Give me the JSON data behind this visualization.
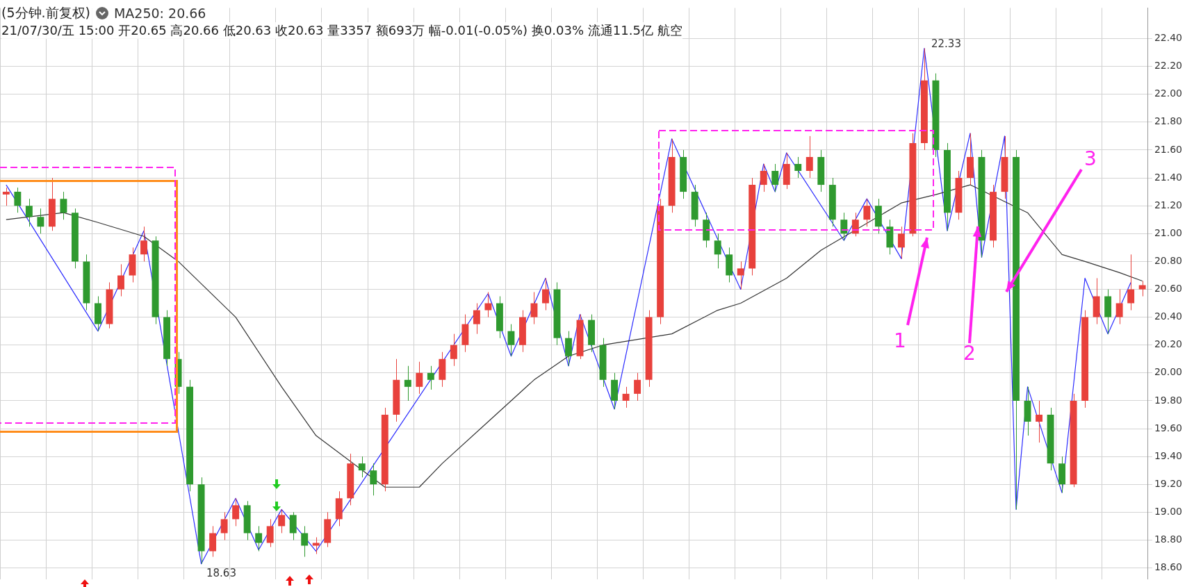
{
  "chart_data": {
    "type": "candlestick",
    "title": "(5分钟.前复权)",
    "subtitle": "21/07/30/五 15:00 开20.65 高20.66 低20.63 收20.63 量3357 额693万 幅-0.01(-0.05%) 换0.03% 流通11.5亿 航空",
    "categories": [
      null,
      null,
      null,
      null,
      null,
      null,
      null,
      null,
      null,
      null,
      null,
      null,
      null,
      null,
      null,
      null,
      null,
      null,
      null,
      null,
      null,
      null,
      null,
      null,
      null,
      null,
      null,
      null,
      null,
      null,
      null,
      null,
      null,
      null,
      null,
      null,
      null,
      null,
      null,
      null,
      null,
      null,
      null,
      null,
      null,
      null,
      null,
      null,
      null,
      null,
      null,
      null,
      null,
      null,
      null,
      null,
      null,
      null,
      null,
      null,
      null,
      null,
      null,
      null,
      null,
      null,
      null,
      null,
      null,
      null,
      null,
      null,
      null,
      null,
      null,
      null,
      null,
      null,
      null,
      null,
      null,
      null,
      null,
      null,
      null,
      null,
      null,
      null,
      null,
      null,
      null,
      null,
      null,
      null,
      null,
      null,
      null,
      null,
      null,
      null
    ],
    "ohlc": [
      [
        21.28,
        21.33,
        21.2,
        21.3
      ],
      [
        21.3,
        21.33,
        21.15,
        21.2
      ],
      [
        21.2,
        21.25,
        21.05,
        21.12
      ],
      [
        21.12,
        21.18,
        21.0,
        21.05
      ],
      [
        21.05,
        21.4,
        21.02,
        21.25
      ],
      [
        21.25,
        21.3,
        21.1,
        21.15
      ],
      [
        21.15,
        21.18,
        20.75,
        20.8
      ],
      [
        20.8,
        20.85,
        20.45,
        20.5
      ],
      [
        20.5,
        20.55,
        20.3,
        20.35
      ],
      [
        20.35,
        20.65,
        20.32,
        20.6
      ],
      [
        20.6,
        20.78,
        20.55,
        20.7
      ],
      [
        20.7,
        20.9,
        20.65,
        20.85
      ],
      [
        20.85,
        21.05,
        20.8,
        20.95
      ],
      [
        20.95,
        20.98,
        20.35,
        20.4
      ],
      [
        20.4,
        20.45,
        20.05,
        20.1
      ],
      [
        20.1,
        20.15,
        19.85,
        19.9
      ],
      [
        19.9,
        19.95,
        19.15,
        19.2
      ],
      [
        19.2,
        19.25,
        18.63,
        18.72
      ],
      [
        18.72,
        18.9,
        18.68,
        18.85
      ],
      [
        18.85,
        19.0,
        18.8,
        18.95
      ],
      [
        18.95,
        19.1,
        18.9,
        19.05
      ],
      [
        19.05,
        19.08,
        18.8,
        18.85
      ],
      [
        18.85,
        18.9,
        18.72,
        18.78
      ],
      [
        18.78,
        18.95,
        18.75,
        18.9
      ],
      [
        18.9,
        19.02,
        18.85,
        18.98
      ],
      [
        18.98,
        19.0,
        18.8,
        18.85
      ],
      [
        18.85,
        18.9,
        18.68,
        18.76
      ],
      [
        18.76,
        18.82,
        18.7,
        18.78
      ],
      [
        18.78,
        19.0,
        18.75,
        18.95
      ],
      [
        18.95,
        19.15,
        18.9,
        19.1
      ],
      [
        19.1,
        19.42,
        19.05,
        19.35
      ],
      [
        19.35,
        19.4,
        19.25,
        19.3
      ],
      [
        19.3,
        19.35,
        19.12,
        19.2
      ],
      [
        19.2,
        19.75,
        19.15,
        19.7
      ],
      [
        19.7,
        20.1,
        19.65,
        19.95
      ],
      [
        19.95,
        20.05,
        19.8,
        19.9
      ],
      [
        19.9,
        20.08,
        19.85,
        20.0
      ],
      [
        20.0,
        20.05,
        19.88,
        19.95
      ],
      [
        19.95,
        20.15,
        19.9,
        20.1
      ],
      [
        20.1,
        20.28,
        20.05,
        20.2
      ],
      [
        20.2,
        20.42,
        20.15,
        20.35
      ],
      [
        20.35,
        20.5,
        20.28,
        20.45
      ],
      [
        20.45,
        20.58,
        20.4,
        20.5
      ],
      [
        20.5,
        20.55,
        20.25,
        20.3
      ],
      [
        20.3,
        20.35,
        20.12,
        20.2
      ],
      [
        20.2,
        20.45,
        20.15,
        20.4
      ],
      [
        20.4,
        20.58,
        20.35,
        20.5
      ],
      [
        20.5,
        20.68,
        20.45,
        20.6
      ],
      [
        20.6,
        20.65,
        20.2,
        20.25
      ],
      [
        20.25,
        20.3,
        20.05,
        20.12
      ],
      [
        20.12,
        20.42,
        20.1,
        20.38
      ],
      [
        20.38,
        20.42,
        20.15,
        20.2
      ],
      [
        20.2,
        20.25,
        19.9,
        19.95
      ],
      [
        19.95,
        20.0,
        19.74,
        19.8
      ],
      [
        19.8,
        19.9,
        19.75,
        19.85
      ],
      [
        19.85,
        20.0,
        19.8,
        19.95
      ],
      [
        19.95,
        20.45,
        19.9,
        20.4
      ],
      [
        20.4,
        21.25,
        20.35,
        21.2
      ],
      [
        21.2,
        21.68,
        21.15,
        21.55
      ],
      [
        21.55,
        21.6,
        21.25,
        21.3
      ],
      [
        21.3,
        21.35,
        21.05,
        21.1
      ],
      [
        21.1,
        21.15,
        20.9,
        20.95
      ],
      [
        20.95,
        21.0,
        20.75,
        20.85
      ],
      [
        20.85,
        20.9,
        20.65,
        20.7
      ],
      [
        20.7,
        20.8,
        20.6,
        20.75
      ],
      [
        20.75,
        21.4,
        20.7,
        21.35
      ],
      [
        21.35,
        21.5,
        21.3,
        21.45
      ],
      [
        21.45,
        21.5,
        21.3,
        21.35
      ],
      [
        21.35,
        21.58,
        21.32,
        21.5
      ],
      [
        21.5,
        21.55,
        21.4,
        21.45
      ],
      [
        21.45,
        21.7,
        21.4,
        21.55
      ],
      [
        21.55,
        21.6,
        21.3,
        21.35
      ],
      [
        21.35,
        21.4,
        21.05,
        21.1
      ],
      [
        21.1,
        21.15,
        20.95,
        21.0
      ],
      [
        21.0,
        21.15,
        20.98,
        21.1
      ],
      [
        21.1,
        21.25,
        21.05,
        21.2
      ],
      [
        21.2,
        21.25,
        21.0,
        21.05
      ],
      [
        21.05,
        21.1,
        20.85,
        20.9
      ],
      [
        20.9,
        21.05,
        20.82,
        21.0
      ],
      [
        21.0,
        21.72,
        20.98,
        21.65
      ],
      [
        21.65,
        22.33,
        21.6,
        22.1
      ],
      [
        22.1,
        22.15,
        21.55,
        21.6
      ],
      [
        21.6,
        21.65,
        21.02,
        21.15
      ],
      [
        21.15,
        21.45,
        21.1,
        21.4
      ],
      [
        21.4,
        21.72,
        21.35,
        21.55
      ],
      [
        21.55,
        21.6,
        20.83,
        20.95
      ],
      [
        20.95,
        21.35,
        20.9,
        21.3
      ],
      [
        21.3,
        21.7,
        21.25,
        21.55
      ],
      [
        21.55,
        21.6,
        19.02,
        19.8
      ],
      [
        19.8,
        19.9,
        19.55,
        19.65
      ],
      [
        19.65,
        19.8,
        19.5,
        19.7
      ],
      [
        19.7,
        19.75,
        19.3,
        19.35
      ],
      [
        19.35,
        19.4,
        19.14,
        19.2
      ],
      [
        19.2,
        19.85,
        19.18,
        19.8
      ],
      [
        19.8,
        20.45,
        19.75,
        20.4
      ],
      [
        20.4,
        20.68,
        20.35,
        20.55
      ],
      [
        20.55,
        20.6,
        20.28,
        20.4
      ],
      [
        20.4,
        20.6,
        20.35,
        20.5
      ],
      [
        20.5,
        20.85,
        20.45,
        20.6
      ],
      [
        20.6,
        20.66,
        20.55,
        20.63
      ]
    ],
    "colors": [
      "#e8413c",
      "#2f9a2f",
      "#2f9a2f",
      "#2f9a2f",
      "#e8413c",
      "#2f9a2f",
      "#2f9a2f",
      "#2f9a2f",
      "#2f9a2f",
      "#e8413c",
      "#e8413c",
      "#e8413c",
      "#e8413c",
      "#2f9a2f",
      "#2f9a2f",
      "#2f9a2f",
      "#2f9a2f",
      "#2f9a2f",
      "#e8413c",
      "#e8413c",
      "#e8413c",
      "#2f9a2f",
      "#2f9a2f",
      "#e8413c",
      "#e8413c",
      "#2f9a2f",
      "#2f9a2f",
      "#e8413c",
      "#e8413c",
      "#e8413c",
      "#e8413c",
      "#2f9a2f",
      "#2f9a2f",
      "#e8413c",
      "#e8413c",
      "#2f9a2f",
      "#e8413c",
      "#2f9a2f",
      "#e8413c",
      "#e8413c",
      "#e8413c",
      "#e8413c",
      "#e8413c",
      "#2f9a2f",
      "#2f9a2f",
      "#e8413c",
      "#e8413c",
      "#e8413c",
      "#2f9a2f",
      "#2f9a2f",
      "#e8413c",
      "#2f9a2f",
      "#2f9a2f",
      "#2f9a2f",
      "#e8413c",
      "#e8413c",
      "#e8413c",
      "#e8413c",
      "#e8413c",
      "#2f9a2f",
      "#2f9a2f",
      "#2f9a2f",
      "#2f9a2f",
      "#2f9a2f",
      "#e8413c",
      "#e8413c",
      "#e8413c",
      "#2f9a2f",
      "#e8413c",
      "#2f9a2f",
      "#e8413c",
      "#2f9a2f",
      "#2f9a2f",
      "#2f9a2f",
      "#e8413c",
      "#e8413c",
      "#2f9a2f",
      "#2f9a2f",
      "#e8413c",
      "#e8413c",
      "#e8413c",
      "#2f9a2f",
      "#2f9a2f",
      "#e8413c",
      "#e8413c",
      "#2f9a2f",
      "#e8413c",
      "#e8413c",
      "#2f9a2f",
      "#2f9a2f",
      "#e8413c",
      "#2f9a2f",
      "#2f9a2f",
      "#e8413c",
      "#e8413c",
      "#e8413c",
      "#2f9a2f",
      "#e8413c",
      "#e8413c",
      "#e8413c"
    ],
    "series": [
      {
        "name": "MA250: 20.66",
        "type": "line",
        "color": "#333333",
        "values": [
          21.1,
          null,
          null,
          null,
          null,
          21.15,
          null,
          null,
          21.08,
          null,
          null,
          null,
          20.98,
          null,
          null,
          20.8,
          null,
          null,
          null,
          null,
          20.4,
          null,
          null,
          null,
          19.9,
          null,
          null,
          19.55,
          null,
          null,
          null,
          null,
          null,
          19.18,
          null,
          null,
          19.18,
          null,
          19.35,
          null,
          null,
          null,
          19.65,
          null,
          null,
          null,
          19.95,
          null,
          null,
          20.12,
          null,
          null,
          20.2,
          null,
          null,
          null,
          null,
          null,
          20.28,
          null,
          null,
          null,
          20.45,
          null,
          20.5,
          null,
          null,
          null,
          20.68,
          null,
          null,
          20.88,
          null,
          null,
          null,
          null,
          null,
          null,
          21.22,
          null,
          null,
          21.28,
          null,
          null,
          21.35,
          null,
          null,
          null,
          null,
          21.15,
          null,
          null,
          20.85,
          null,
          20.8,
          null,
          null,
          20.72,
          null,
          20.66
        ]
      },
      {
        "type": "line",
        "color": "#2a2aff",
        "values": [
          21.35,
          null,
          null,
          null,
          null,
          null,
          null,
          null,
          20.3,
          null,
          null,
          null,
          21.02,
          null,
          null,
          null,
          null,
          18.63,
          null,
          null,
          19.1,
          null,
          18.73,
          null,
          19.02,
          null,
          null,
          18.72,
          null,
          null,
          null,
          null,
          null,
          null,
          null,
          null,
          null,
          null,
          null,
          null,
          null,
          null,
          20.57,
          null,
          20.12,
          null,
          null,
          20.68,
          null,
          20.05,
          20.42,
          null,
          null,
          19.74,
          null,
          null,
          null,
          null,
          21.68,
          null,
          null,
          null,
          null,
          null,
          20.6,
          null,
          21.5,
          21.3,
          21.58,
          null,
          null,
          null,
          null,
          20.95,
          null,
          21.25,
          null,
          null,
          20.82,
          null,
          22.33,
          null,
          21.02,
          null,
          21.72,
          20.83,
          null,
          21.7,
          19.02,
          19.9,
          null,
          null,
          19.14,
          null,
          20.68,
          null,
          20.28,
          null,
          20.65,
          null
        ]
      }
    ],
    "ylim": [
      18.52,
      22.62
    ],
    "yticks": [
      {
        "value": 18.6,
        "label": "18.60"
      },
      {
        "value": 18.8,
        "label": "18.80"
      },
      {
        "value": 19.0,
        "label": "19.00"
      },
      {
        "value": 19.2,
        "label": "19.20"
      },
      {
        "value": 19.4,
        "label": "19.40"
      },
      {
        "value": 19.6,
        "label": "19.60"
      },
      {
        "value": 19.8,
        "label": "19.80"
      },
      {
        "value": 20.0,
        "label": "20.00"
      },
      {
        "value": 20.2,
        "label": "20.20"
      },
      {
        "value": 20.4,
        "label": "20.40"
      },
      {
        "value": 20.6,
        "label": "20.60"
      },
      {
        "value": 20.8,
        "label": "20.80"
      },
      {
        "value": 21.0,
        "label": "21.00"
      },
      {
        "value": 21.2,
        "label": "21.20"
      },
      {
        "value": 21.4,
        "label": "21.40"
      },
      {
        "value": 21.6,
        "label": "21.60"
      },
      {
        "value": 21.8,
        "label": "21.80"
      },
      {
        "value": 22.0,
        "label": "22.00"
      },
      {
        "value": 22.2,
        "label": "22.20"
      },
      {
        "value": 22.4,
        "label": "22.40"
      }
    ],
    "grid": true,
    "tick_labels": "y",
    "annotations": [
      "22.33",
      "18.63",
      "1",
      "2",
      "3"
    ]
  }
}
